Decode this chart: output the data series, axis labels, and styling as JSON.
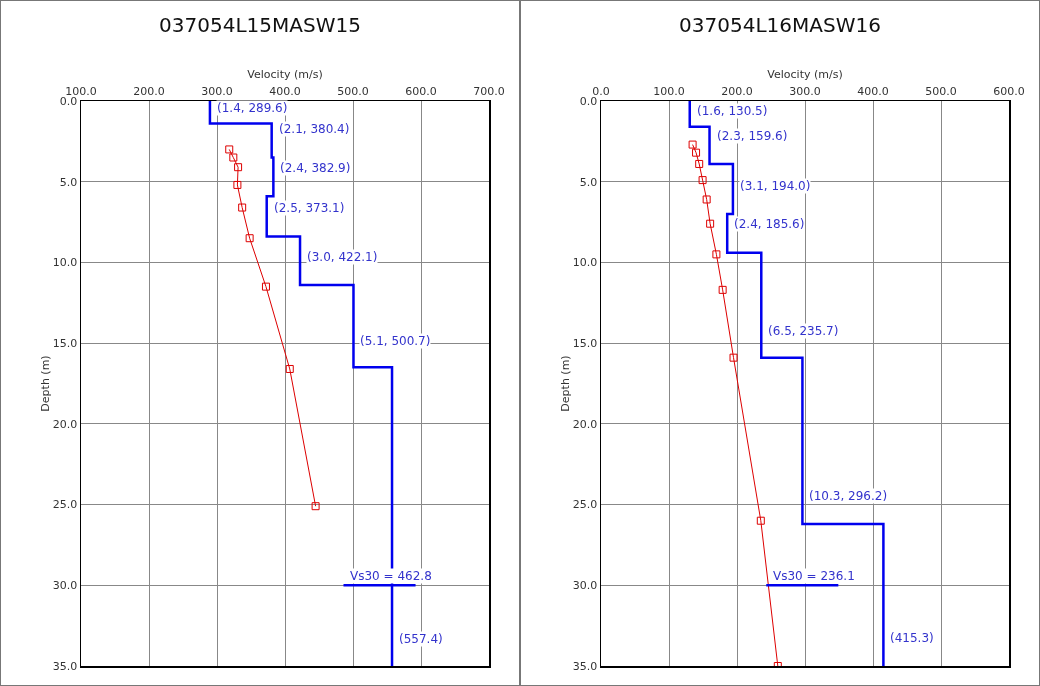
{
  "chart_data": [
    {
      "type": "line",
      "title": "037054L15MASW15",
      "xlabel": "Velocity (m/s)",
      "ylabel": "Depth (m)",
      "xlim": [
        100,
        700
      ],
      "xticks": [
        {
          "value": 100,
          "label": "100.0"
        },
        {
          "value": 200,
          "label": "200.0"
        },
        {
          "value": 300,
          "label": "300.0"
        },
        {
          "value": 400,
          "label": "400.0"
        },
        {
          "value": 500,
          "label": "500.0"
        },
        {
          "value": 600,
          "label": "600.0"
        },
        {
          "value": 700,
          "label": "700.0"
        }
      ],
      "ylim": [
        35,
        0
      ],
      "yticks": [
        {
          "value": 0,
          "label": "0.0"
        },
        {
          "value": 5,
          "label": "5.0"
        },
        {
          "value": 10,
          "label": "10.0"
        },
        {
          "value": 15,
          "label": "15.0"
        },
        {
          "value": 20,
          "label": "20.0"
        },
        {
          "value": 25,
          "label": "25.0"
        },
        {
          "value": 30,
          "label": "30.0"
        },
        {
          "value": 35,
          "label": "35.0"
        }
      ],
      "grid": true,
      "series": [
        {
          "color": "#0000ee",
          "marker": "none",
          "x": [
            289.6,
            289.6,
            380.4,
            380.4,
            382.9,
            382.9,
            373.1,
            373.1,
            422.1,
            422.1,
            500.7,
            500.7,
            557.4,
            557.4
          ],
          "values": [
            0,
            1.4,
            1.4,
            3.5,
            3.5,
            5.9,
            5.9,
            8.4,
            8.4,
            11.4,
            11.4,
            16.5,
            16.5,
            35
          ]
        },
        {
          "color": "#dd0000",
          "marker": "square",
          "x": [
            318,
            324,
            331,
            330,
            337,
            348,
            372,
            407,
            445
          ],
          "values": [
            3.0,
            3.5,
            4.1,
            5.2,
            6.6,
            8.5,
            11.5,
            16.6,
            25.1
          ]
        },
        {
          "color": "#0000ee",
          "marker": "none",
          "x": [
            486,
            592
          ],
          "values": [
            30,
            30
          ]
        }
      ],
      "annotations": [
        {
          "text": "(1.4, 289.6)",
          "x": 289.6,
          "y": 1.0
        },
        {
          "text": "(2.1, 380.4)",
          "x": 380.4,
          "y": 2.3
        },
        {
          "text": "(2.4, 382.9)",
          "x": 382.9,
          "y": 4.7
        },
        {
          "text": "(2.5, 373.1)",
          "x": 373.1,
          "y": 7.2
        },
        {
          "text": "(3.0, 422.1)",
          "x": 422.1,
          "y": 10.2
        },
        {
          "text": "(5.1, 500.7)",
          "x": 500.7,
          "y": 15.4
        },
        {
          "text": "Vs30 = 462.8",
          "x": 486,
          "y": 30
        },
        {
          "text": "(557.4)",
          "x": 557.4,
          "y": 33.9
        }
      ]
    },
    {
      "type": "line",
      "title": "037054L16MASW16",
      "xlabel": "Velocity (m/s)",
      "ylabel": "Depth (m)",
      "xlim": [
        0,
        600
      ],
      "xticks": [
        {
          "value": 0,
          "label": "0.0"
        },
        {
          "value": 100,
          "label": "100.0"
        },
        {
          "value": 200,
          "label": "200.0"
        },
        {
          "value": 300,
          "label": "300.0"
        },
        {
          "value": 400,
          "label": "400.0"
        },
        {
          "value": 500,
          "label": "500.0"
        },
        {
          "value": 600,
          "label": "600.0"
        }
      ],
      "ylim": [
        35,
        0
      ],
      "yticks": [
        {
          "value": 0,
          "label": "0.0"
        },
        {
          "value": 5,
          "label": "5.0"
        },
        {
          "value": 10,
          "label": "10.0"
        },
        {
          "value": 15,
          "label": "15.0"
        },
        {
          "value": 20,
          "label": "20.0"
        },
        {
          "value": 25,
          "label": "25.0"
        },
        {
          "value": 30,
          "label": "30.0"
        },
        {
          "value": 35,
          "label": "35.0"
        }
      ],
      "grid": true,
      "series": [
        {
          "color": "#0000ee",
          "marker": "none",
          "x": [
            130.5,
            130.5,
            159.6,
            159.6,
            194.0,
            194.0,
            185.6,
            185.6,
            235.7,
            235.7,
            296.2,
            296.2,
            415.3,
            415.3
          ],
          "values": [
            0,
            1.6,
            1.6,
            3.9,
            3.9,
            7.0,
            7.0,
            9.4,
            9.4,
            15.9,
            15.9,
            26.2,
            26.2,
            35
          ]
        },
        {
          "color": "#dd0000",
          "marker": "square",
          "x": [
            134.7,
            139.8,
            144.4,
            149.4,
            155.4,
            160.5,
            169.7,
            178.9,
            194.9,
            235,
            260
          ],
          "values": [
            2.7,
            3.2,
            3.9,
            4.9,
            6.1,
            7.6,
            9.5,
            11.7,
            15.9,
            26.0,
            35
          ]
        },
        {
          "color": "#0000ee",
          "marker": "none",
          "x": [
            243,
            349
          ],
          "values": [
            30,
            30
          ]
        }
      ],
      "annotations": [
        {
          "text": "(1.6, 130.5)",
          "x": 130.5,
          "y": 1.2
        },
        {
          "text": "(2.3, 159.6)",
          "x": 159.6,
          "y": 2.7
        },
        {
          "text": "(3.1, 194.0)",
          "x": 194.0,
          "y": 5.8
        },
        {
          "text": "(2.4, 185.6)",
          "x": 185.6,
          "y": 8.2
        },
        {
          "text": "(6.5, 235.7)",
          "x": 235.7,
          "y": 14.8
        },
        {
          "text": "(10.3, 296.2)",
          "x": 296.2,
          "y": 25.0
        },
        {
          "text": "Vs30 = 236.1",
          "x": 243,
          "y": 30
        },
        {
          "text": "(415.3)",
          "x": 415.3,
          "y": 33.8
        }
      ]
    }
  ]
}
